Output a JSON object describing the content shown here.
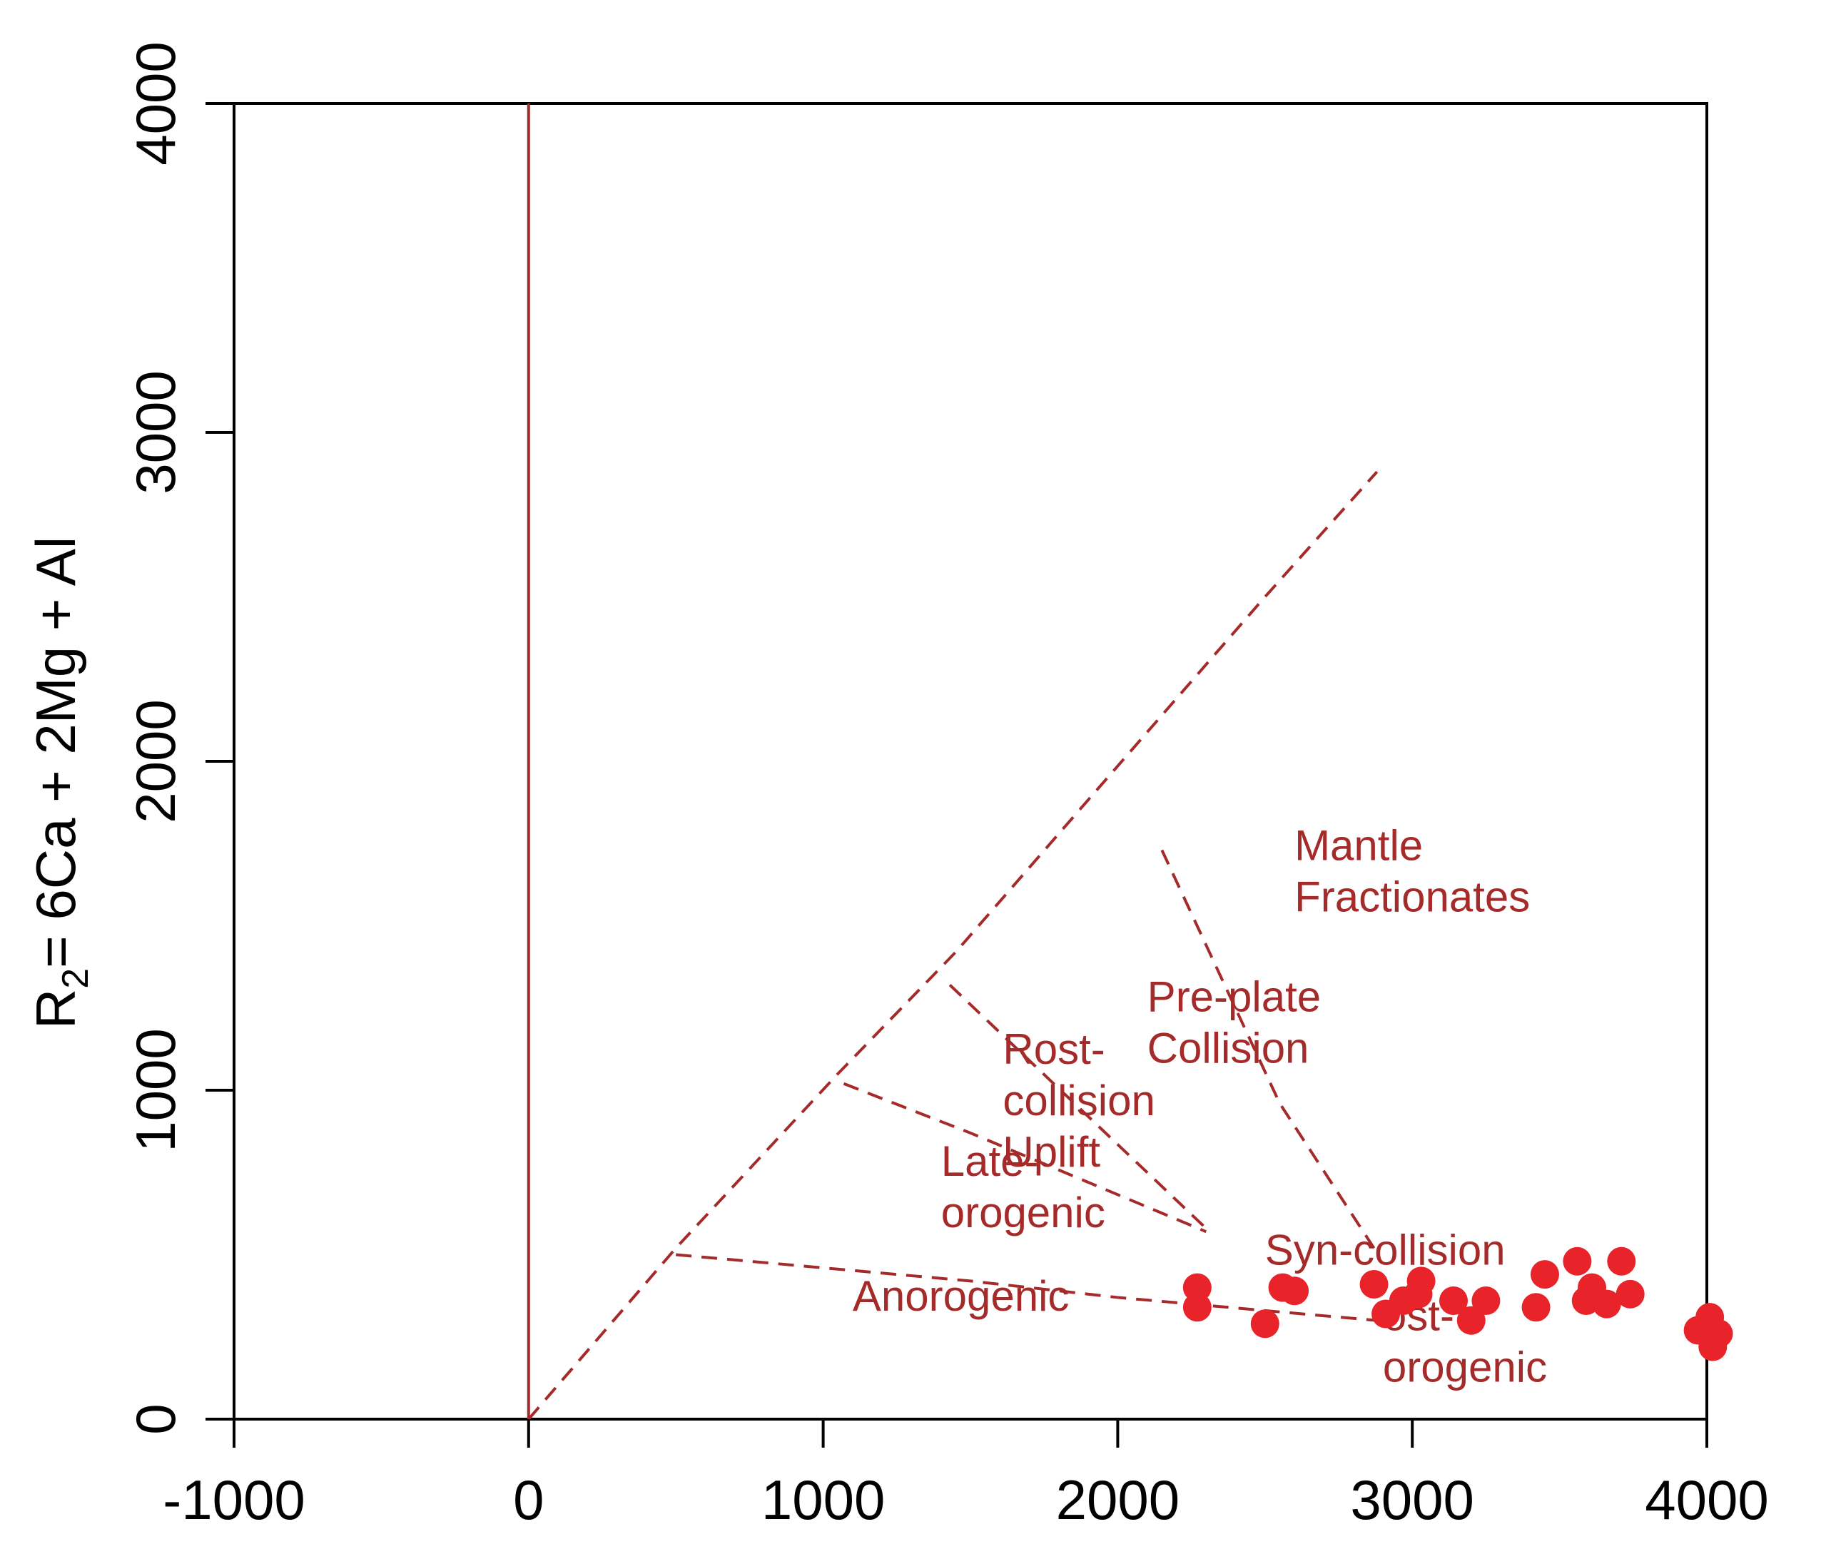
{
  "chart_data": {
    "type": "scatter",
    "title": "",
    "xlabel": "",
    "ylabel_prefix": "R",
    "ylabel_sub": "2",
    "ylabel_rest": "= 6Ca + 2Mg + Al",
    "xlim": [
      -1000,
      4000
    ],
    "ylim": [
      0,
      4000
    ],
    "x_ticks": [
      -1000,
      0,
      1000,
      2000,
      3000,
      4000
    ],
    "x_tick_labels": [
      "-1000",
      "0",
      "1000",
      "2000",
      "3000",
      "4000"
    ],
    "y_ticks": [
      0,
      1000,
      2000,
      3000,
      4000
    ],
    "y_tick_labels": [
      "0",
      "1000",
      "2000",
      "3000",
      "4000"
    ],
    "grid": false,
    "colors": {
      "points": "#e8242a",
      "lines": "#a52a2a",
      "axis": "#000000"
    },
    "reference_line": {
      "x": 0,
      "style": "solid"
    },
    "boundaries": [
      [
        [
          0,
          0
        ],
        [
          500,
          520
        ],
        [
          1050,
          1050
        ],
        [
          1450,
          1420
        ],
        [
          2500,
          2500
        ],
        [
          2880,
          2880
        ]
      ],
      [
        [
          500,
          500
        ],
        [
          1000,
          460
        ],
        [
          1500,
          420
        ],
        [
          2000,
          370
        ],
        [
          2500,
          330
        ],
        [
          2880,
          300
        ]
      ],
      [
        [
          1070,
          1020
        ],
        [
          1500,
          870
        ],
        [
          2300,
          570
        ]
      ],
      [
        [
          1430,
          1320
        ],
        [
          1900,
          920
        ],
        [
          2300,
          580
        ]
      ],
      [
        [
          2150,
          1730
        ],
        [
          2550,
          960
        ],
        [
          2870,
          520
        ]
      ]
    ],
    "region_labels": [
      {
        "lines": [
          "Mantle",
          "Fractionates"
        ],
        "x": 2600,
        "y": 1700
      },
      {
        "lines": [
          "Pre-plate",
          "Collision"
        ],
        "x": 2100,
        "y": 1240
      },
      {
        "lines": [
          "Rost-",
          "collision",
          "Uplift"
        ],
        "x": 1610,
        "y": 1080
      },
      {
        "lines": [
          "Late-",
          "orogenic"
        ],
        "x": 1400,
        "y": 740
      },
      {
        "lines": [
          "Anorogenic"
        ],
        "x": 1100,
        "y": 330
      },
      {
        "lines": [
          "Syn-collision"
        ],
        "x": 2500,
        "y": 470
      },
      {
        "lines": [
          "ost-",
          "orogenic"
        ],
        "x": 2900,
        "y": 270
      }
    ],
    "points": {
      "x": [
        2270,
        2270,
        2500,
        2560,
        2600,
        2870,
        2910,
        2970,
        3020,
        3030,
        3140,
        3200,
        3250,
        3420,
        3450,
        3560,
        3590,
        3610,
        3660,
        3710,
        3740,
        3970,
        4010,
        4020,
        4040
      ],
      "y": [
        400,
        340,
        290,
        400,
        390,
        410,
        320,
        360,
        380,
        420,
        360,
        300,
        360,
        340,
        440,
        480,
        360,
        400,
        350,
        480,
        380,
        270,
        310,
        220,
        260
      ]
    }
  }
}
